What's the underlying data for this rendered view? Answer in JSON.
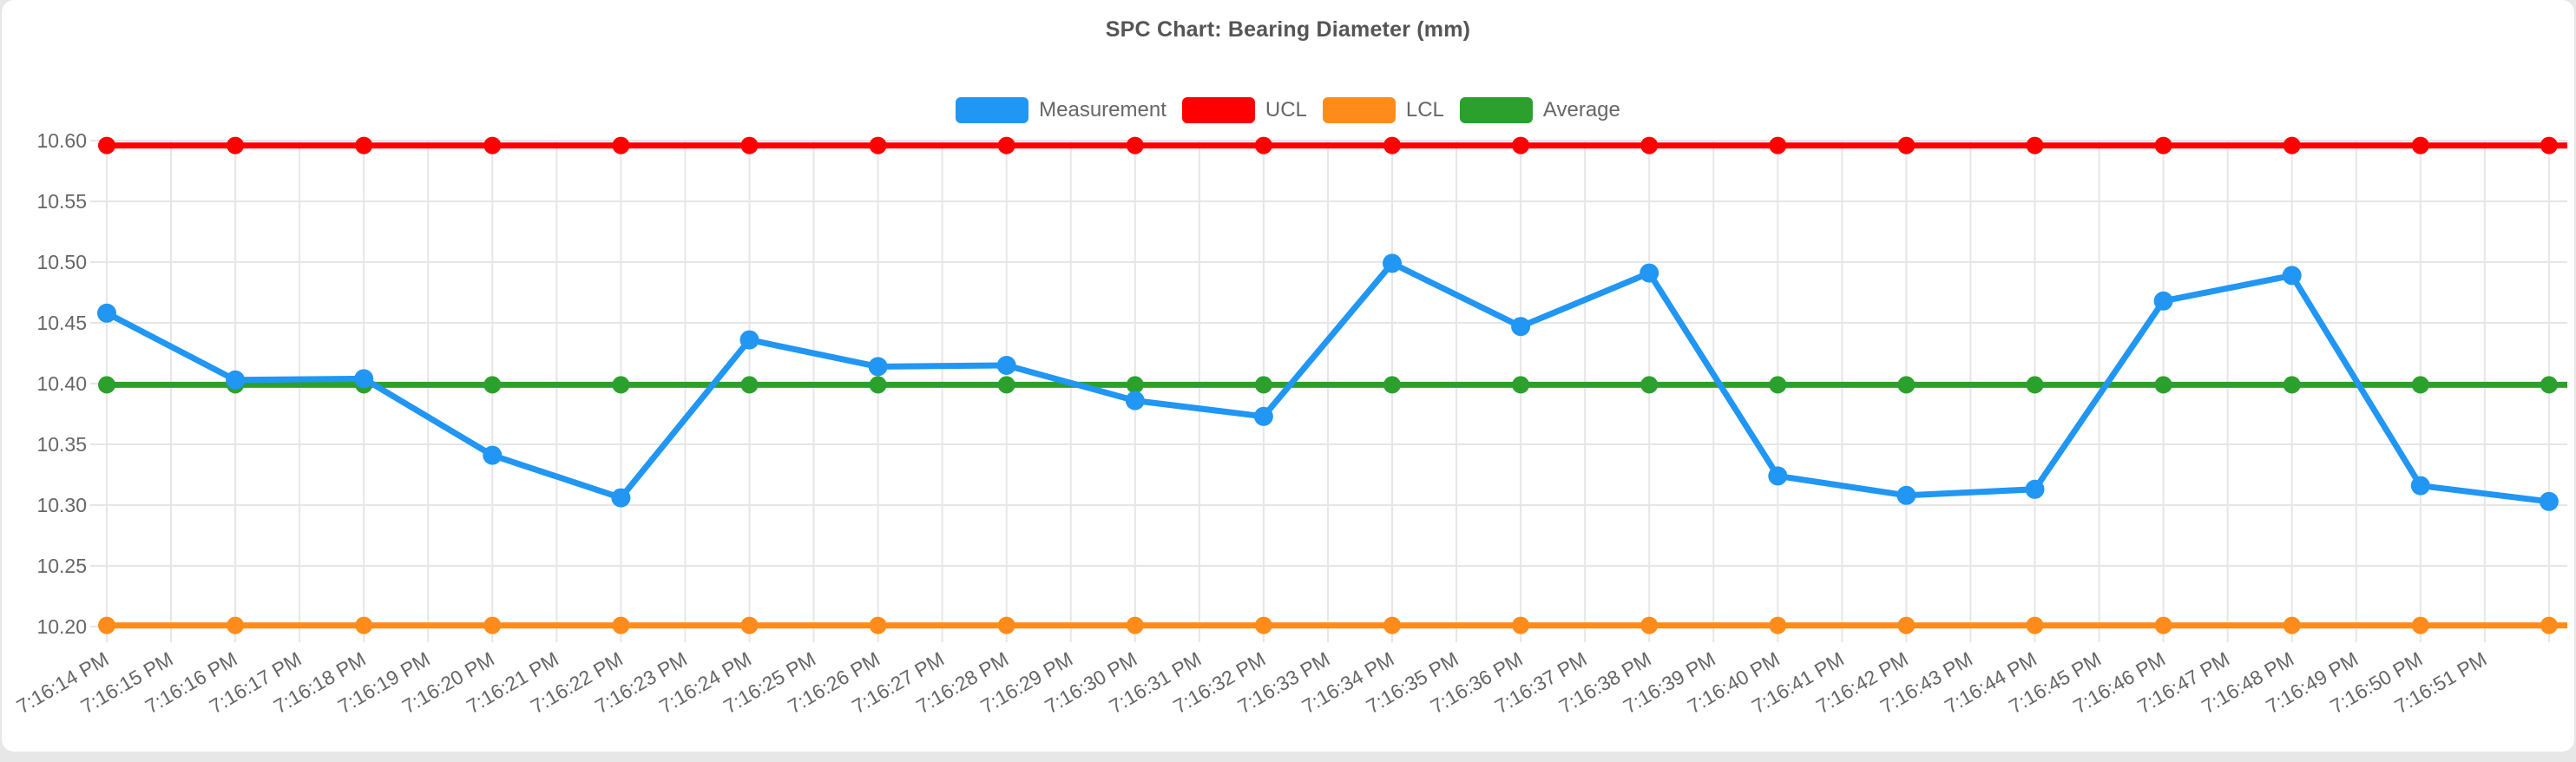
{
  "page": {
    "background_color": "#e7e7e7",
    "card_background_color": "#ffffff"
  },
  "chart_data": {
    "type": "line",
    "title": "SPC Chart: Bearing Diameter (mm)",
    "legend_position": "top",
    "grid": true,
    "grid_color": "#e6e6e6",
    "text_color": "#666666",
    "x_labels": [
      "7:16:14 PM",
      "7:16:15 PM",
      "7:16:16 PM",
      "7:16:17 PM",
      "7:16:18 PM",
      "7:16:19 PM",
      "7:16:20 PM",
      "7:16:21 PM",
      "7:16:22 PM",
      "7:16:23 PM",
      "7:16:24 PM",
      "7:16:25 PM",
      "7:16:26 PM",
      "7:16:27 PM",
      "7:16:28 PM",
      "7:16:29 PM",
      "7:16:30 PM",
      "7:16:31 PM",
      "7:16:32 PM",
      "7:16:33 PM",
      "7:16:34 PM",
      "7:16:35 PM",
      "7:16:36 PM",
      "7:16:37 PM",
      "7:16:38 PM",
      "7:16:39 PM",
      "7:16:40 PM",
      "7:16:41 PM",
      "7:16:42 PM",
      "7:16:43 PM",
      "7:16:44 PM",
      "7:16:45 PM",
      "7:16:46 PM",
      "7:16:47 PM",
      "7:16:48 PM",
      "7:16:49 PM",
      "7:16:50 PM",
      "7:16:51 PM"
    ],
    "x_labels_rotation_deg": -30,
    "points_span_labels": 2,
    "y_axis": {
      "min": 10.2,
      "max": 10.6,
      "tick_step": 0.05,
      "tick_labels": [
        "10.60",
        "10.55",
        "10.50",
        "10.45",
        "10.40",
        "10.35",
        "10.30",
        "10.25",
        "10.20"
      ]
    },
    "series": [
      {
        "name": "Measurement",
        "color": "#2196F3",
        "kind": "data",
        "values": [
          10.458,
          10.403,
          10.404,
          10.341,
          10.306,
          10.436,
          10.414,
          10.415,
          10.386,
          10.373,
          10.499,
          10.447,
          10.491,
          10.324,
          10.308,
          10.313,
          10.468,
          10.489,
          10.316,
          10.303
        ]
      },
      {
        "name": "UCL",
        "color": "#FF0000",
        "kind": "constant",
        "constant": 10.596
      },
      {
        "name": "LCL",
        "color": "#FF8C1A",
        "kind": "constant",
        "constant": 10.201
      },
      {
        "name": "Average",
        "color": "#2CA02C",
        "kind": "constant",
        "constant": 10.399
      }
    ]
  }
}
